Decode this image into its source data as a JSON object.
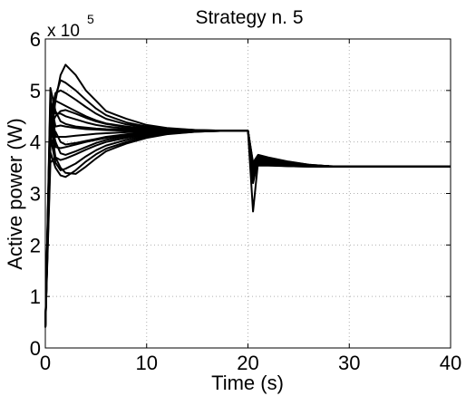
{
  "chart_data": {
    "type": "line",
    "title": "Strategy n. 5",
    "xlabel": "Time (s)",
    "ylabel": "Active power (W)",
    "y_multiplier": "x 10",
    "y_multiplier_exponent": "5",
    "xlim": [
      0,
      40
    ],
    "ylim": [
      0,
      6
    ],
    "y_scale": 100000,
    "x_ticks": [
      0,
      10,
      20,
      30,
      40
    ],
    "x_tick_labels": [
      "0",
      "10",
      "20",
      "30",
      "40"
    ],
    "y_ticks": [
      0,
      1,
      2,
      3,
      4,
      5,
      6
    ],
    "y_tick_labels": [
      "0",
      "1",
      "2",
      "3",
      "4",
      "5",
      "6"
    ],
    "grid": true,
    "grid_style": "dotted",
    "line_color": "#000000",
    "x": [
      0,
      0.5,
      1,
      1.5,
      2,
      3,
      4,
      5,
      6,
      8,
      10,
      12,
      15,
      18,
      20,
      20.5,
      21,
      22,
      24,
      26,
      28,
      30,
      33,
      36,
      40
    ],
    "series": [
      {
        "values": [
          0.4,
          4.0,
          4.8,
          5.3,
          5.5,
          5.3,
          5.0,
          4.8,
          4.6,
          4.45,
          4.33,
          4.27,
          4.23,
          4.22,
          4.22,
          3.6,
          3.75,
          3.7,
          3.62,
          3.56,
          3.53,
          3.52,
          3.52,
          3.52,
          3.52
        ]
      },
      {
        "values": [
          0.4,
          4.2,
          4.9,
          5.2,
          5.15,
          5.0,
          4.82,
          4.65,
          4.52,
          4.38,
          4.3,
          4.26,
          4.23,
          4.22,
          4.22,
          3.55,
          3.72,
          3.68,
          3.61,
          3.56,
          3.53,
          3.52,
          3.52,
          3.52,
          3.52
        ]
      },
      {
        "values": [
          0.4,
          4.5,
          4.95,
          5.0,
          4.95,
          4.82,
          4.68,
          4.55,
          4.45,
          4.34,
          4.28,
          4.25,
          4.23,
          4.22,
          4.22,
          3.5,
          3.7,
          3.66,
          3.6,
          3.55,
          3.53,
          3.52,
          3.52,
          3.52,
          3.52
        ]
      },
      {
        "values": [
          0.4,
          4.6,
          4.8,
          4.75,
          4.7,
          4.6,
          4.5,
          4.42,
          4.36,
          4.3,
          4.26,
          4.24,
          4.22,
          4.22,
          4.22,
          3.45,
          3.68,
          3.64,
          3.59,
          3.55,
          3.53,
          3.52,
          3.52,
          3.52,
          3.52
        ]
      },
      {
        "values": [
          0.4,
          4.7,
          4.55,
          4.55,
          4.5,
          4.44,
          4.38,
          4.33,
          4.3,
          4.26,
          4.24,
          4.23,
          4.22,
          4.22,
          4.22,
          3.4,
          3.66,
          3.63,
          3.58,
          3.55,
          3.53,
          3.52,
          3.52,
          3.52,
          3.52
        ]
      },
      {
        "values": [
          0.4,
          4.8,
          4.3,
          4.32,
          4.3,
          4.27,
          4.25,
          4.24,
          4.23,
          4.22,
          4.22,
          4.22,
          4.22,
          4.22,
          4.22,
          3.2,
          3.64,
          3.62,
          3.57,
          3.54,
          3.53,
          3.52,
          3.52,
          3.52,
          3.52
        ]
      },
      {
        "values": [
          0.4,
          4.9,
          4.1,
          4.1,
          4.1,
          4.12,
          4.14,
          4.16,
          4.17,
          4.19,
          4.2,
          4.21,
          4.22,
          4.22,
          4.22,
          2.65,
          3.62,
          3.6,
          3.56,
          3.54,
          3.53,
          3.52,
          3.52,
          3.52,
          3.52
        ]
      },
      {
        "values": [
          0.4,
          4.6,
          3.9,
          3.88,
          3.9,
          3.95,
          4.0,
          4.04,
          4.08,
          4.13,
          4.17,
          4.19,
          4.21,
          4.22,
          4.22,
          3.3,
          3.6,
          3.58,
          3.55,
          3.53,
          3.52,
          3.52,
          3.52,
          3.52,
          3.52
        ]
      },
      {
        "values": [
          0.4,
          4.4,
          3.7,
          3.65,
          3.68,
          3.76,
          3.85,
          3.93,
          4.0,
          4.08,
          4.14,
          4.18,
          4.21,
          4.22,
          4.22,
          3.35,
          3.58,
          3.57,
          3.54,
          3.53,
          3.52,
          3.52,
          3.52,
          3.52,
          3.52
        ]
      },
      {
        "values": [
          0.4,
          4.1,
          3.6,
          3.45,
          3.48,
          3.58,
          3.72,
          3.84,
          3.93,
          4.04,
          4.12,
          4.17,
          4.2,
          4.22,
          4.22,
          3.4,
          3.56,
          3.56,
          3.54,
          3.53,
          3.52,
          3.52,
          3.52,
          3.52,
          3.52
        ]
      },
      {
        "values": [
          0.4,
          3.8,
          3.5,
          3.35,
          3.32,
          3.45,
          3.62,
          3.76,
          3.87,
          4.0,
          4.1,
          4.16,
          4.2,
          4.22,
          4.22,
          3.45,
          3.55,
          3.55,
          3.53,
          3.52,
          3.52,
          3.52,
          3.52,
          3.52,
          3.52
        ]
      },
      {
        "values": [
          0.4,
          3.6,
          3.7,
          3.5,
          3.4,
          3.38,
          3.52,
          3.68,
          3.82,
          3.97,
          4.08,
          4.15,
          4.2,
          4.22,
          4.22,
          3.5,
          3.54,
          3.54,
          3.53,
          3.52,
          3.52,
          3.52,
          3.52,
          3.52,
          3.52
        ]
      },
      {
        "values": [
          0.4,
          5.05,
          4.6,
          4.4,
          4.35,
          4.3,
          4.28,
          4.26,
          4.25,
          4.24,
          4.23,
          4.22,
          4.22,
          4.22,
          4.22,
          3.55,
          3.66,
          3.62,
          3.57,
          3.54,
          3.53,
          3.52,
          3.52,
          3.52,
          3.52
        ]
      },
      {
        "values": [
          0.4,
          4.3,
          4.5,
          4.6,
          4.62,
          4.55,
          4.47,
          4.4,
          4.35,
          4.29,
          4.26,
          4.24,
          4.22,
          4.22,
          4.22,
          3.58,
          3.7,
          3.65,
          3.59,
          3.55,
          3.53,
          3.52,
          3.52,
          3.52,
          3.52
        ]
      },
      {
        "values": [
          0.4,
          3.9,
          4.2,
          4.0,
          3.95,
          3.98,
          4.02,
          4.06,
          4.1,
          4.15,
          4.18,
          4.2,
          4.21,
          4.22,
          4.22,
          3.48,
          3.6,
          3.59,
          3.55,
          3.53,
          3.52,
          3.52,
          3.52,
          3.52,
          3.52
        ]
      },
      {
        "values": [
          0.4,
          4.5,
          4.0,
          3.78,
          3.75,
          3.82,
          3.9,
          3.98,
          4.04,
          4.11,
          4.15,
          4.18,
          4.21,
          4.22,
          4.22,
          3.42,
          3.57,
          3.57,
          3.54,
          3.53,
          3.52,
          3.52,
          3.52,
          3.52,
          3.52
        ]
      }
    ]
  }
}
